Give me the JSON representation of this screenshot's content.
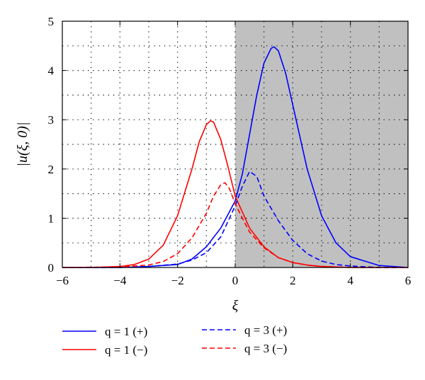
{
  "chart_data": {
    "type": "line",
    "xlabel": "ξ",
    "ylabel": "|u(ξ, 0)|",
    "xlim": [
      -6,
      6
    ],
    "ylim": [
      0,
      5
    ],
    "xticks": [
      -6,
      -4,
      -2,
      0,
      2,
      4,
      6
    ],
    "yticks": [
      0,
      1,
      2,
      3,
      4,
      5
    ],
    "xtick_labels": [
      "−6",
      "−4",
      "−2",
      "0",
      "2",
      "4",
      "6"
    ],
    "ytick_labels": [
      "0",
      "1",
      "2",
      "3",
      "4",
      "5"
    ],
    "grid": "dotted",
    "shaded_region": {
      "x_from": 0,
      "x_to": 6,
      "color": "#c0c0c0"
    },
    "legend_position": "bottom",
    "series": [
      {
        "name": "q = 1 (+)",
        "color": "#0000ff",
        "style": "solid",
        "x": [
          -6,
          -5,
          -4,
          -3,
          -2,
          -1.5,
          -1,
          -0.5,
          0,
          0.25,
          0.5,
          0.75,
          1.0,
          1.25,
          1.35,
          1.5,
          1.75,
          2.0,
          2.5,
          3,
          3.5,
          4,
          5,
          6
        ],
        "y": [
          0,
          0,
          0,
          0.02,
          0.06,
          0.17,
          0.42,
          0.8,
          1.35,
          1.9,
          2.7,
          3.5,
          4.15,
          4.45,
          4.48,
          4.4,
          3.95,
          3.3,
          2.0,
          1.05,
          0.5,
          0.22,
          0.04,
          0.0
        ]
      },
      {
        "name": "q = 1 (−)",
        "color": "#ff0000",
        "style": "solid",
        "x": [
          -6,
          -5,
          -4,
          -3.5,
          -3,
          -2.5,
          -2,
          -1.5,
          -1.25,
          -1,
          -0.85,
          -0.75,
          -0.5,
          -0.25,
          0,
          0.5,
          1,
          1.5,
          2,
          2.5,
          3,
          4,
          5,
          6
        ],
        "y": [
          0,
          0,
          0.02,
          0.06,
          0.17,
          0.45,
          1.05,
          2.0,
          2.55,
          2.9,
          2.98,
          2.95,
          2.6,
          2.05,
          1.45,
          0.8,
          0.42,
          0.2,
          0.1,
          0.05,
          0.02,
          0,
          0,
          0
        ]
      },
      {
        "name": "q = 3 (+)",
        "color": "#0000ff",
        "style": "dashed",
        "x": [
          -6,
          -4,
          -3,
          -2,
          -1.5,
          -1,
          -0.5,
          0,
          0.25,
          0.5,
          0.75,
          1.0,
          1.5,
          2,
          2.5,
          3,
          3.5,
          4,
          5,
          6
        ],
        "y": [
          0,
          0,
          0.02,
          0.07,
          0.15,
          0.3,
          0.62,
          1.25,
          1.65,
          1.95,
          1.85,
          1.45,
          0.95,
          0.55,
          0.28,
          0.13,
          0.06,
          0.03,
          0,
          0
        ]
      },
      {
        "name": "q = 3 (−)",
        "color": "#ff0000",
        "style": "dashed",
        "x": [
          -6,
          -4,
          -3,
          -2.5,
          -2,
          -1.5,
          -1,
          -0.75,
          -0.5,
          -0.35,
          -0.2,
          0,
          0.25,
          0.5,
          1,
          1.5,
          2,
          2.5,
          3,
          4,
          5,
          6
        ],
        "y": [
          0,
          0.01,
          0.05,
          0.12,
          0.28,
          0.6,
          1.1,
          1.45,
          1.68,
          1.72,
          1.6,
          1.3,
          1.0,
          0.72,
          0.4,
          0.2,
          0.1,
          0.05,
          0.02,
          0,
          0,
          0
        ]
      }
    ]
  }
}
